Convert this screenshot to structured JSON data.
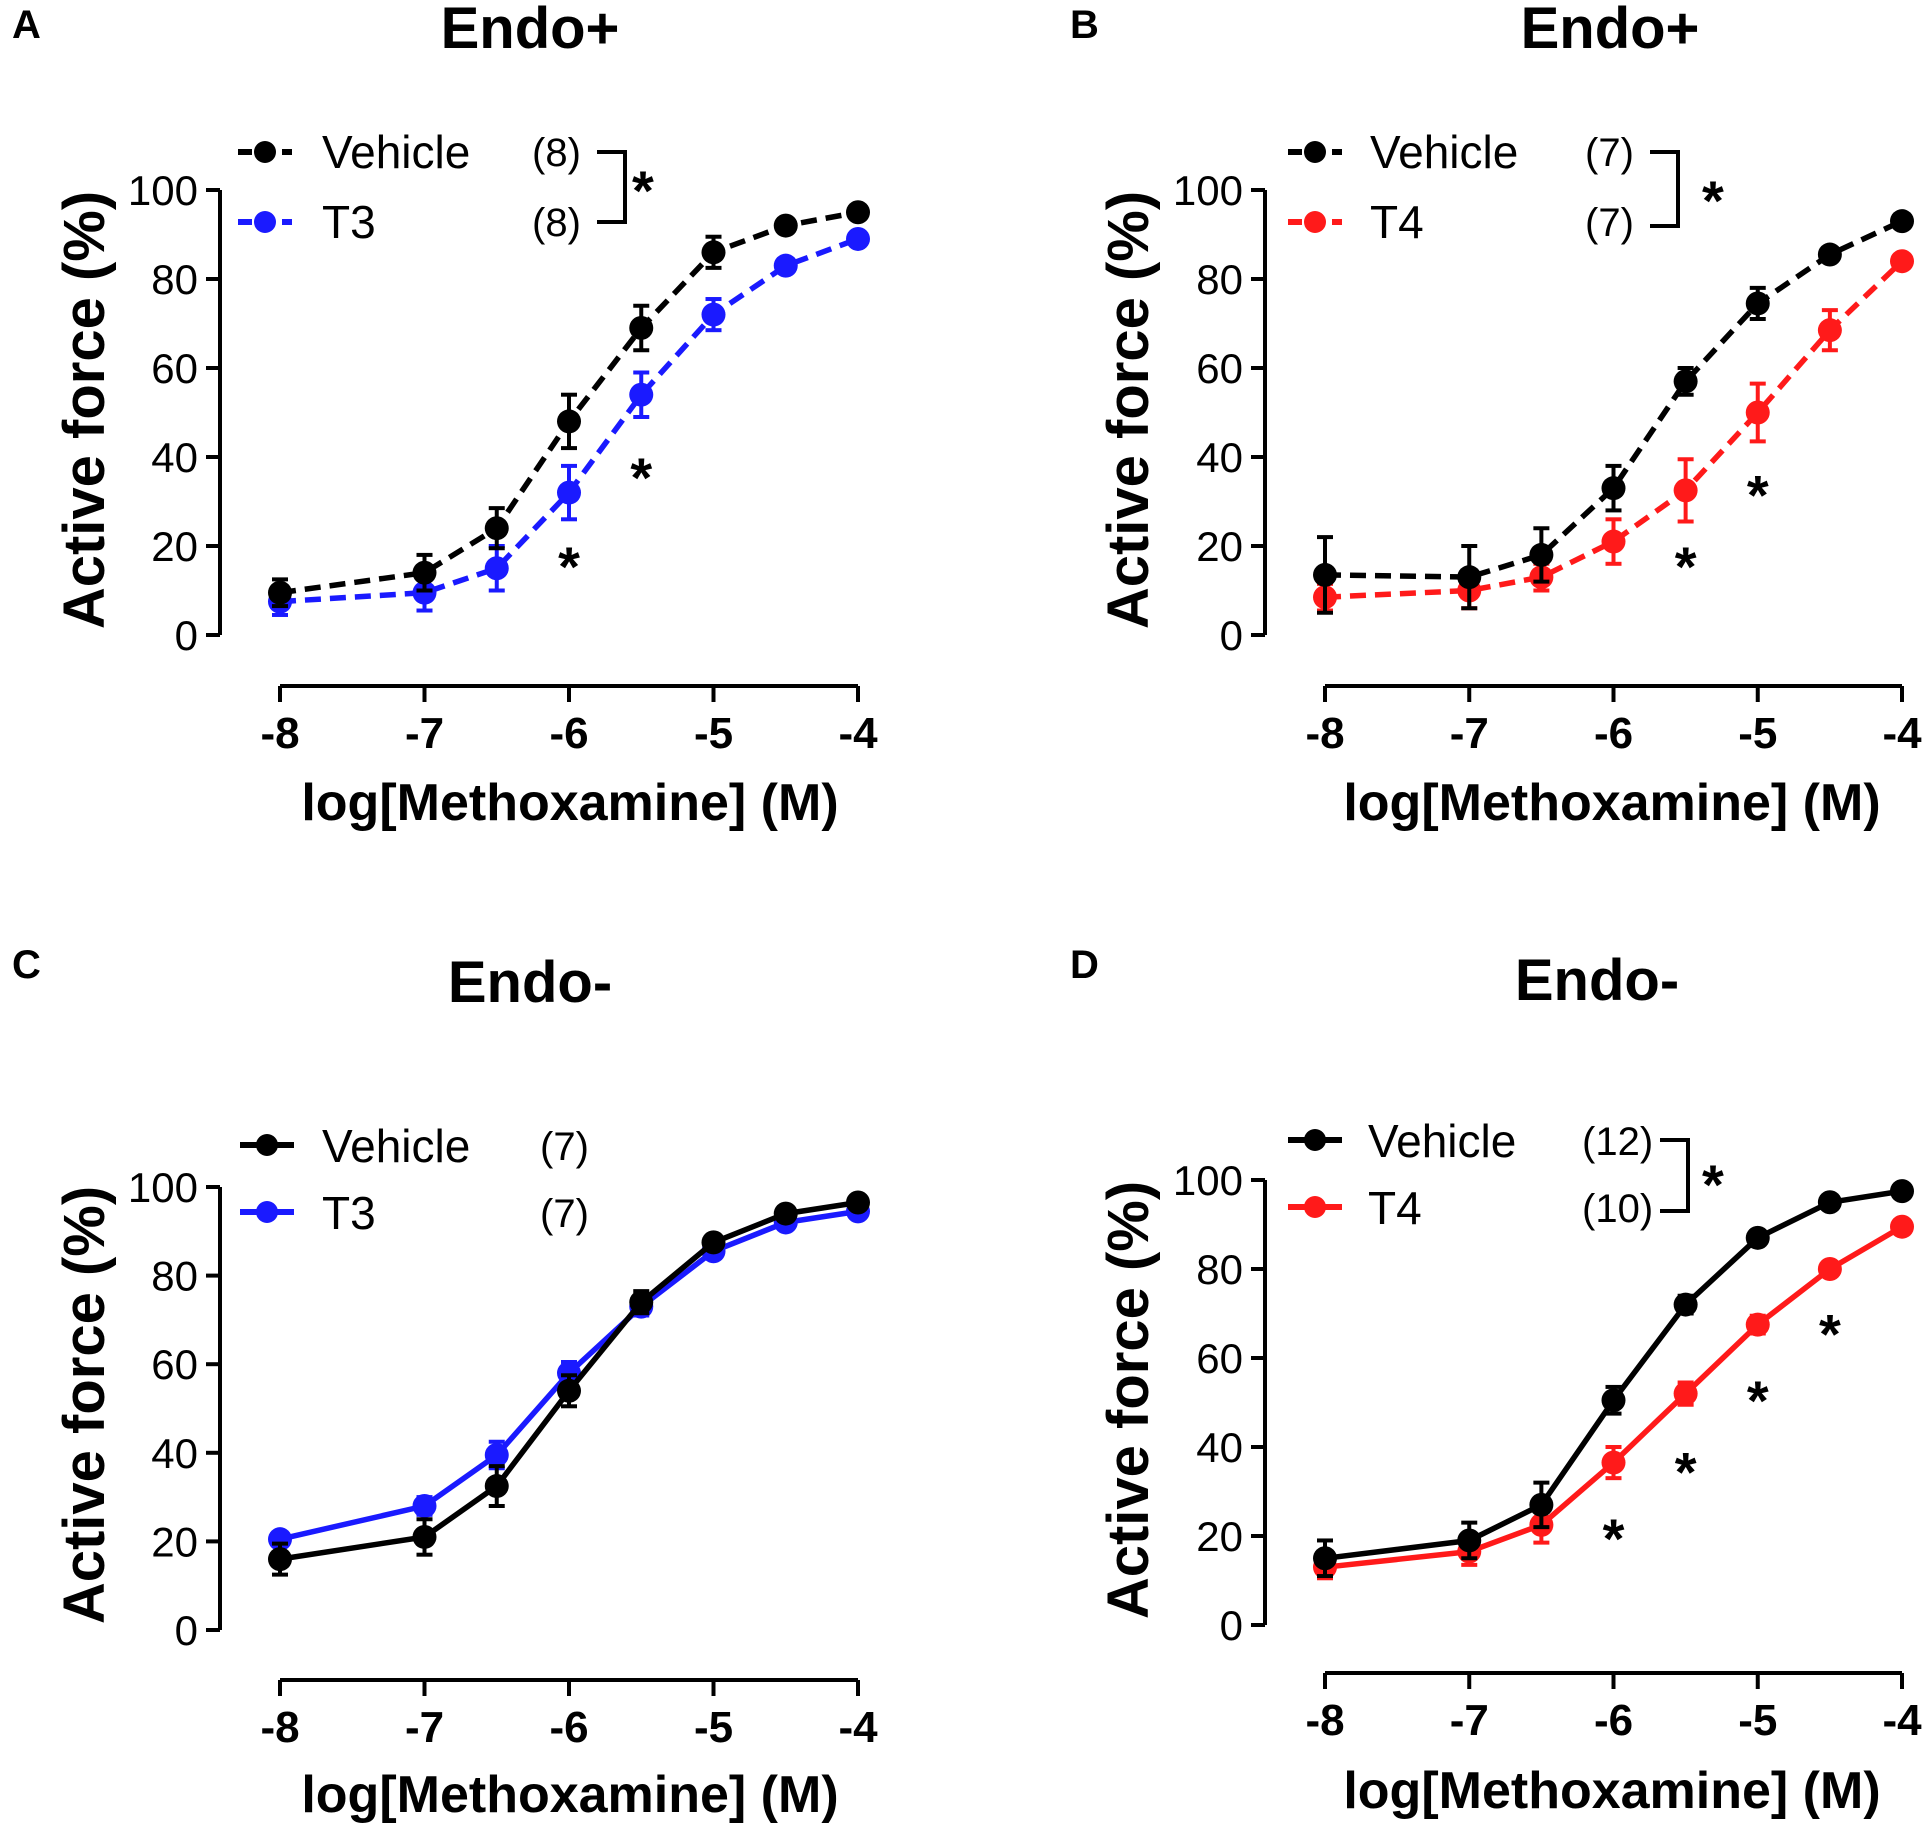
{
  "chart_data": [
    {
      "type": "line",
      "panel": "A",
      "title": "Endo+",
      "xlabel": "log[Methoxamine] (M)",
      "ylabel": "Active force (%)",
      "xlim": [
        -8,
        -4
      ],
      "ylim": [
        0,
        100
      ],
      "xticks": [
        "-8",
        "-7",
        "-6",
        "-5",
        "-4"
      ],
      "yticks": [
        "0",
        "20",
        "40",
        "60",
        "80",
        "100"
      ],
      "x": [
        -8,
        -7,
        -6.5,
        -6,
        -5.5,
        -5,
        -4.5,
        -4
      ],
      "series": [
        {
          "name": "Vehicle",
          "n": "(8)",
          "color": "#000000",
          "dash": true,
          "values": [
            9.5,
            14,
            24,
            48,
            69,
            86,
            92,
            95
          ],
          "errors": [
            3,
            4,
            4.5,
            6,
            5,
            3.5,
            1.5,
            1.5
          ]
        },
        {
          "name": "T3",
          "n": "(8)",
          "color": "#1a1aff",
          "dash": true,
          "values": [
            7.5,
            9.5,
            15,
            32,
            54,
            72,
            83,
            89
          ],
          "errors": [
            3,
            4,
            5,
            6,
            5,
            3.5,
            1.5,
            1.5
          ]
        }
      ],
      "bracket_star": "*",
      "point_stars": [
        {
          "x": -6,
          "y": 16,
          "text": "*"
        },
        {
          "x": -5.5,
          "y": 36,
          "text": "*"
        }
      ]
    },
    {
      "type": "line",
      "panel": "B",
      "title": "Endo+",
      "xlabel": "log[Methoxamine] (M)",
      "ylabel": "Active force (%)",
      "xlim": [
        -8,
        -4
      ],
      "ylim": [
        0,
        100
      ],
      "xticks": [
        "-8",
        "-7",
        "-6",
        "-5",
        "-4"
      ],
      "yticks": [
        "0",
        "20",
        "40",
        "60",
        "80",
        "100"
      ],
      "x": [
        -8,
        -7,
        -6.5,
        -6,
        -5.5,
        -5,
        -4.5,
        -4
      ],
      "series": [
        {
          "name": "Vehicle",
          "n": "(7)",
          "color": "#000000",
          "dash": true,
          "values": [
            13.5,
            13,
            18,
            33,
            57,
            74.5,
            85.5,
            93
          ],
          "errors": [
            8.5,
            7,
            6,
            5,
            3,
            3.5,
            1.5,
            1.5
          ]
        },
        {
          "name": "T4",
          "n": "(7)",
          "color": "#ff1a1a",
          "dash": true,
          "values": [
            8.5,
            10,
            13,
            21,
            32.5,
            50,
            68.5,
            84
          ],
          "errors": [
            3,
            4,
            3,
            5,
            7,
            6.5,
            4.5,
            1.5
          ]
        }
      ],
      "bracket_star": "*",
      "point_stars": [
        {
          "x": -5.5,
          "y": 16,
          "text": "*"
        },
        {
          "x": -5,
          "y": 32,
          "text": "*"
        }
      ]
    },
    {
      "type": "line",
      "panel": "C",
      "title": "Endo-",
      "xlabel": "log[Methoxamine] (M)",
      "ylabel": "Active force (%)",
      "xlim": [
        -8,
        -4
      ],
      "ylim": [
        0,
        100
      ],
      "xticks": [
        "-8",
        "-7",
        "-6",
        "-5",
        "-4"
      ],
      "yticks": [
        "0",
        "20",
        "40",
        "60",
        "80",
        "100"
      ],
      "x": [
        -8,
        -7,
        -6.5,
        -6,
        -5.5,
        -5,
        -4.5,
        -4
      ],
      "series": [
        {
          "name": "Vehicle",
          "n": "(7)",
          "color": "#000000",
          "dash": false,
          "values": [
            16,
            21,
            32.5,
            54,
            74,
            87.5,
            94,
            96.5
          ],
          "errors": [
            3.5,
            4,
            4.5,
            3.5,
            2.5,
            1.5,
            1.5,
            1
          ]
        },
        {
          "name": "T3",
          "n": "(7)",
          "color": "#1a1aff",
          "dash": false,
          "values": [
            20.5,
            28,
            39.5,
            58,
            73,
            85.5,
            92,
            94.5
          ],
          "errors": [
            1.5,
            2,
            3,
            2.5,
            2,
            1.5,
            1.5,
            1
          ]
        }
      ],
      "point_stars": []
    },
    {
      "type": "line",
      "panel": "D",
      "title": "Endo-",
      "xlabel": "log[Methoxamine] (M)",
      "ylabel": "Active force (%)",
      "xlim": [
        -8,
        -4
      ],
      "ylim": [
        0,
        100
      ],
      "xticks": [
        "-8",
        "-7",
        "-6",
        "-5",
        "-4"
      ],
      "yticks": [
        "0",
        "20",
        "40",
        "60",
        "80",
        "100"
      ],
      "x": [
        -8,
        -7,
        -6.5,
        -6,
        -5.5,
        -5,
        -4.5,
        -4
      ],
      "series": [
        {
          "name": "Vehicle",
          "n": "(12)",
          "color": "#000000",
          "dash": false,
          "values": [
            15,
            19,
            27,
            50.5,
            72,
            87,
            95,
            97.5
          ],
          "errors": [
            4,
            4,
            5,
            3,
            2,
            1.5,
            1,
            1
          ]
        },
        {
          "name": "T4",
          "n": "(10)",
          "color": "#ff1a1a",
          "dash": false,
          "values": [
            13,
            16.5,
            22.5,
            36.5,
            52,
            67.5,
            80,
            89.5
          ],
          "errors": [
            2.5,
            3,
            4,
            3.5,
            2.5,
            2,
            1.5,
            1
          ]
        }
      ],
      "bracket_star": "*",
      "point_stars": [
        {
          "x": -6,
          "y": 20,
          "text": "*"
        },
        {
          "x": -5.5,
          "y": 35,
          "text": "*"
        },
        {
          "x": -5,
          "y": 51,
          "text": "*"
        },
        {
          "x": -4.5,
          "y": 66,
          "text": "*"
        }
      ]
    }
  ]
}
